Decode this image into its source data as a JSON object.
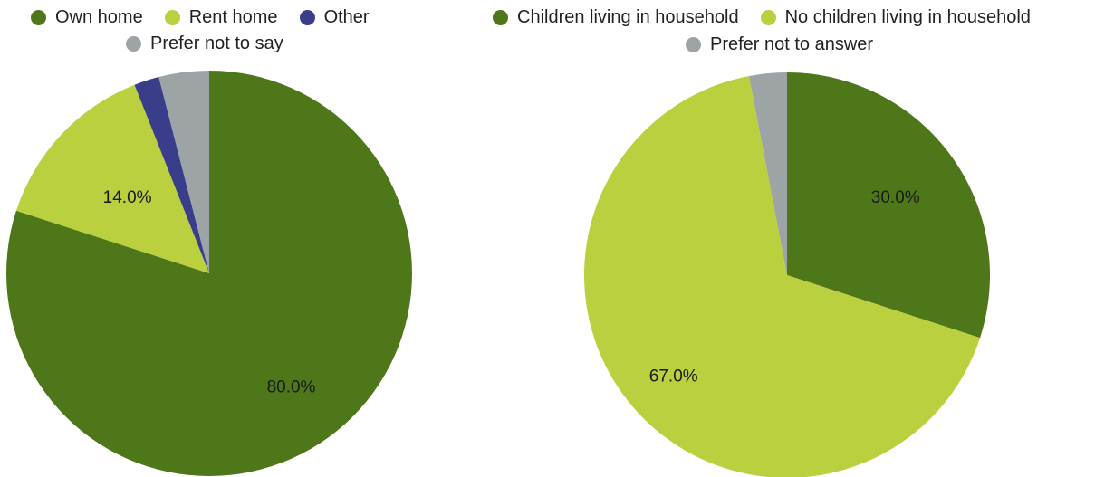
{
  "chart_data": [
    {
      "type": "pie",
      "legend_position": "top",
      "slices": [
        {
          "label": "Own home",
          "value": 80.0,
          "color": "#4e7719",
          "data_label": "80.0%"
        },
        {
          "label": "Rent home",
          "value": 14.0,
          "color": "#bad03f",
          "data_label": "14.0%"
        },
        {
          "label": "Other",
          "value": 2.0,
          "color": "#393d8a",
          "data_label": ""
        },
        {
          "label": "Prefer not to say",
          "value": 4.0,
          "color": "#9ea3a6",
          "data_label": ""
        }
      ]
    },
    {
      "type": "pie",
      "legend_position": "top",
      "slices": [
        {
          "label": "Children living in household",
          "value": 30.0,
          "color": "#4e7719",
          "data_label": "30.0%"
        },
        {
          "label": "No children living in household",
          "value": 67.0,
          "color": "#bad03f",
          "data_label": "67.0%"
        },
        {
          "label": "Prefer not to answer",
          "value": 3.0,
          "color": "#9ea3a6",
          "data_label": ""
        }
      ]
    }
  ]
}
